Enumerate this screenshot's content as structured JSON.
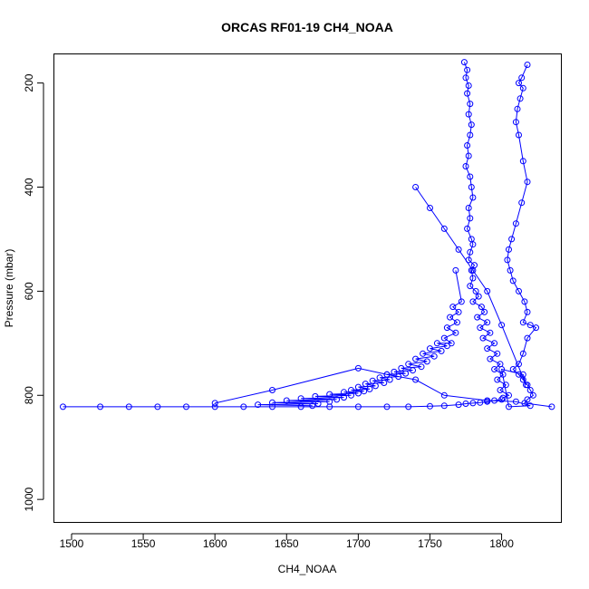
{
  "chart_data": {
    "type": "scatter",
    "title": "ORCAS RF01-19 CH4_NOAA",
    "xlabel": "CH4_NOAA",
    "ylabel": "Pressure (mbar)",
    "xlim": [
      1488,
      1842
    ],
    "ylim": [
      1045,
      145
    ],
    "y_reversed": true,
    "x_ticks": [
      1500,
      1550,
      1600,
      1650,
      1700,
      1750,
      1800
    ],
    "y_ticks": [
      200,
      400,
      600,
      800,
      1000
    ],
    "x_tick_labels": [
      "1500",
      "1550",
      "1600",
      "1650",
      "1700",
      "1750",
      "1800"
    ],
    "y_tick_labels": [
      "200",
      "400",
      "600",
      "800",
      "1000"
    ],
    "grid": false,
    "legend": "none",
    "color": "#0000ff",
    "marker": "open-circle",
    "connected": true,
    "series": [
      {
        "x": [
          1774,
          1776,
          1775,
          1777,
          1776,
          1778,
          1777,
          1779,
          1778,
          1776,
          1777,
          1775,
          1778,
          1779,
          1780,
          1777,
          1778,
          1776,
          1779,
          1780,
          1778,
          1777,
          1781,
          1779,
          1780,
          1778,
          1782,
          1784,
          1780,
          1786,
          1788,
          1783,
          1790,
          1785,
          1792,
          1787,
          1795,
          1790,
          1797,
          1792,
          1799,
          1795,
          1801,
          1797,
          1803,
          1799,
          1805,
          1801,
          1800,
          1795,
          1790,
          1785,
          1780,
          1775,
          1770,
          1760,
          1750,
          1735,
          1720,
          1700,
          1680,
          1660,
          1640,
          1620,
          1600,
          1580,
          1560,
          1540,
          1520,
          1494
        ],
        "y": [
          160,
          175,
          190,
          205,
          220,
          240,
          260,
          280,
          300,
          320,
          340,
          360,
          380,
          400,
          420,
          440,
          460,
          480,
          500,
          510,
          525,
          540,
          550,
          560,
          575,
          590,
          600,
          610,
          620,
          630,
          640,
          650,
          660,
          670,
          680,
          690,
          700,
          710,
          720,
          730,
          740,
          750,
          760,
          770,
          780,
          790,
          800,
          805,
          808,
          810,
          812,
          814,
          815,
          816,
          818,
          820,
          821,
          822,
          822,
          822,
          822,
          822,
          822,
          822,
          822,
          822,
          822,
          822,
          822,
          822
        ]
      },
      {
        "x": [
          1818,
          1814,
          1812,
          1815,
          1813,
          1811,
          1810,
          1812,
          1815,
          1818,
          1814,
          1810,
          1807,
          1805,
          1804,
          1806,
          1808,
          1812,
          1816,
          1818,
          1815,
          1820,
          1824,
          1818,
          1815,
          1812,
          1808,
          1812,
          1815,
          1818,
          1820,
          1822,
          1818,
          1816,
          1835
        ],
        "y": [
          165,
          190,
          200,
          210,
          230,
          250,
          275,
          300,
          350,
          390,
          430,
          470,
          500,
          520,
          540,
          560,
          580,
          600,
          620,
          640,
          660,
          665,
          670,
          690,
          720,
          740,
          750,
          760,
          770,
          780,
          790,
          800,
          808,
          815,
          822
        ]
      },
      {
        "x": [
          1768,
          1772,
          1766,
          1770,
          1764,
          1769,
          1762,
          1768,
          1760,
          1765,
          1755,
          1762,
          1750,
          1758,
          1745,
          1753,
          1740,
          1748,
          1735,
          1744,
          1730,
          1738,
          1725,
          1733,
          1720,
          1728,
          1715,
          1722,
          1710,
          1718,
          1705,
          1712,
          1700,
          1708,
          1695,
          1704,
          1690,
          1700,
          1680,
          1695,
          1670,
          1690,
          1660,
          1685,
          1650,
          1680,
          1640,
          1672,
          1630,
          1668
        ],
        "y": [
          560,
          620,
          630,
          640,
          650,
          660,
          670,
          680,
          690,
          700,
          700,
          705,
          710,
          715,
          720,
          725,
          730,
          735,
          740,
          745,
          748,
          752,
          755,
          758,
          760,
          764,
          766,
          770,
          772,
          776,
          778,
          782,
          784,
          788,
          790,
          792,
          794,
          796,
          798,
          800,
          802,
          804,
          806,
          808,
          810,
          812,
          814,
          816,
          818,
          820
        ]
      },
      {
        "x": [
          1600,
          1640,
          1700,
          1720,
          1740,
          1760,
          1790,
          1810,
          1820,
          1805,
          1800,
          1815,
          1817,
          1800,
          1790,
          1780,
          1770,
          1760,
          1750,
          1740
        ],
        "y": [
          815,
          790,
          748,
          760,
          770,
          800,
          810,
          812,
          820,
          822,
          750,
          760,
          780,
          665,
          600,
          560,
          520,
          480,
          440,
          400
        ]
      }
    ]
  }
}
